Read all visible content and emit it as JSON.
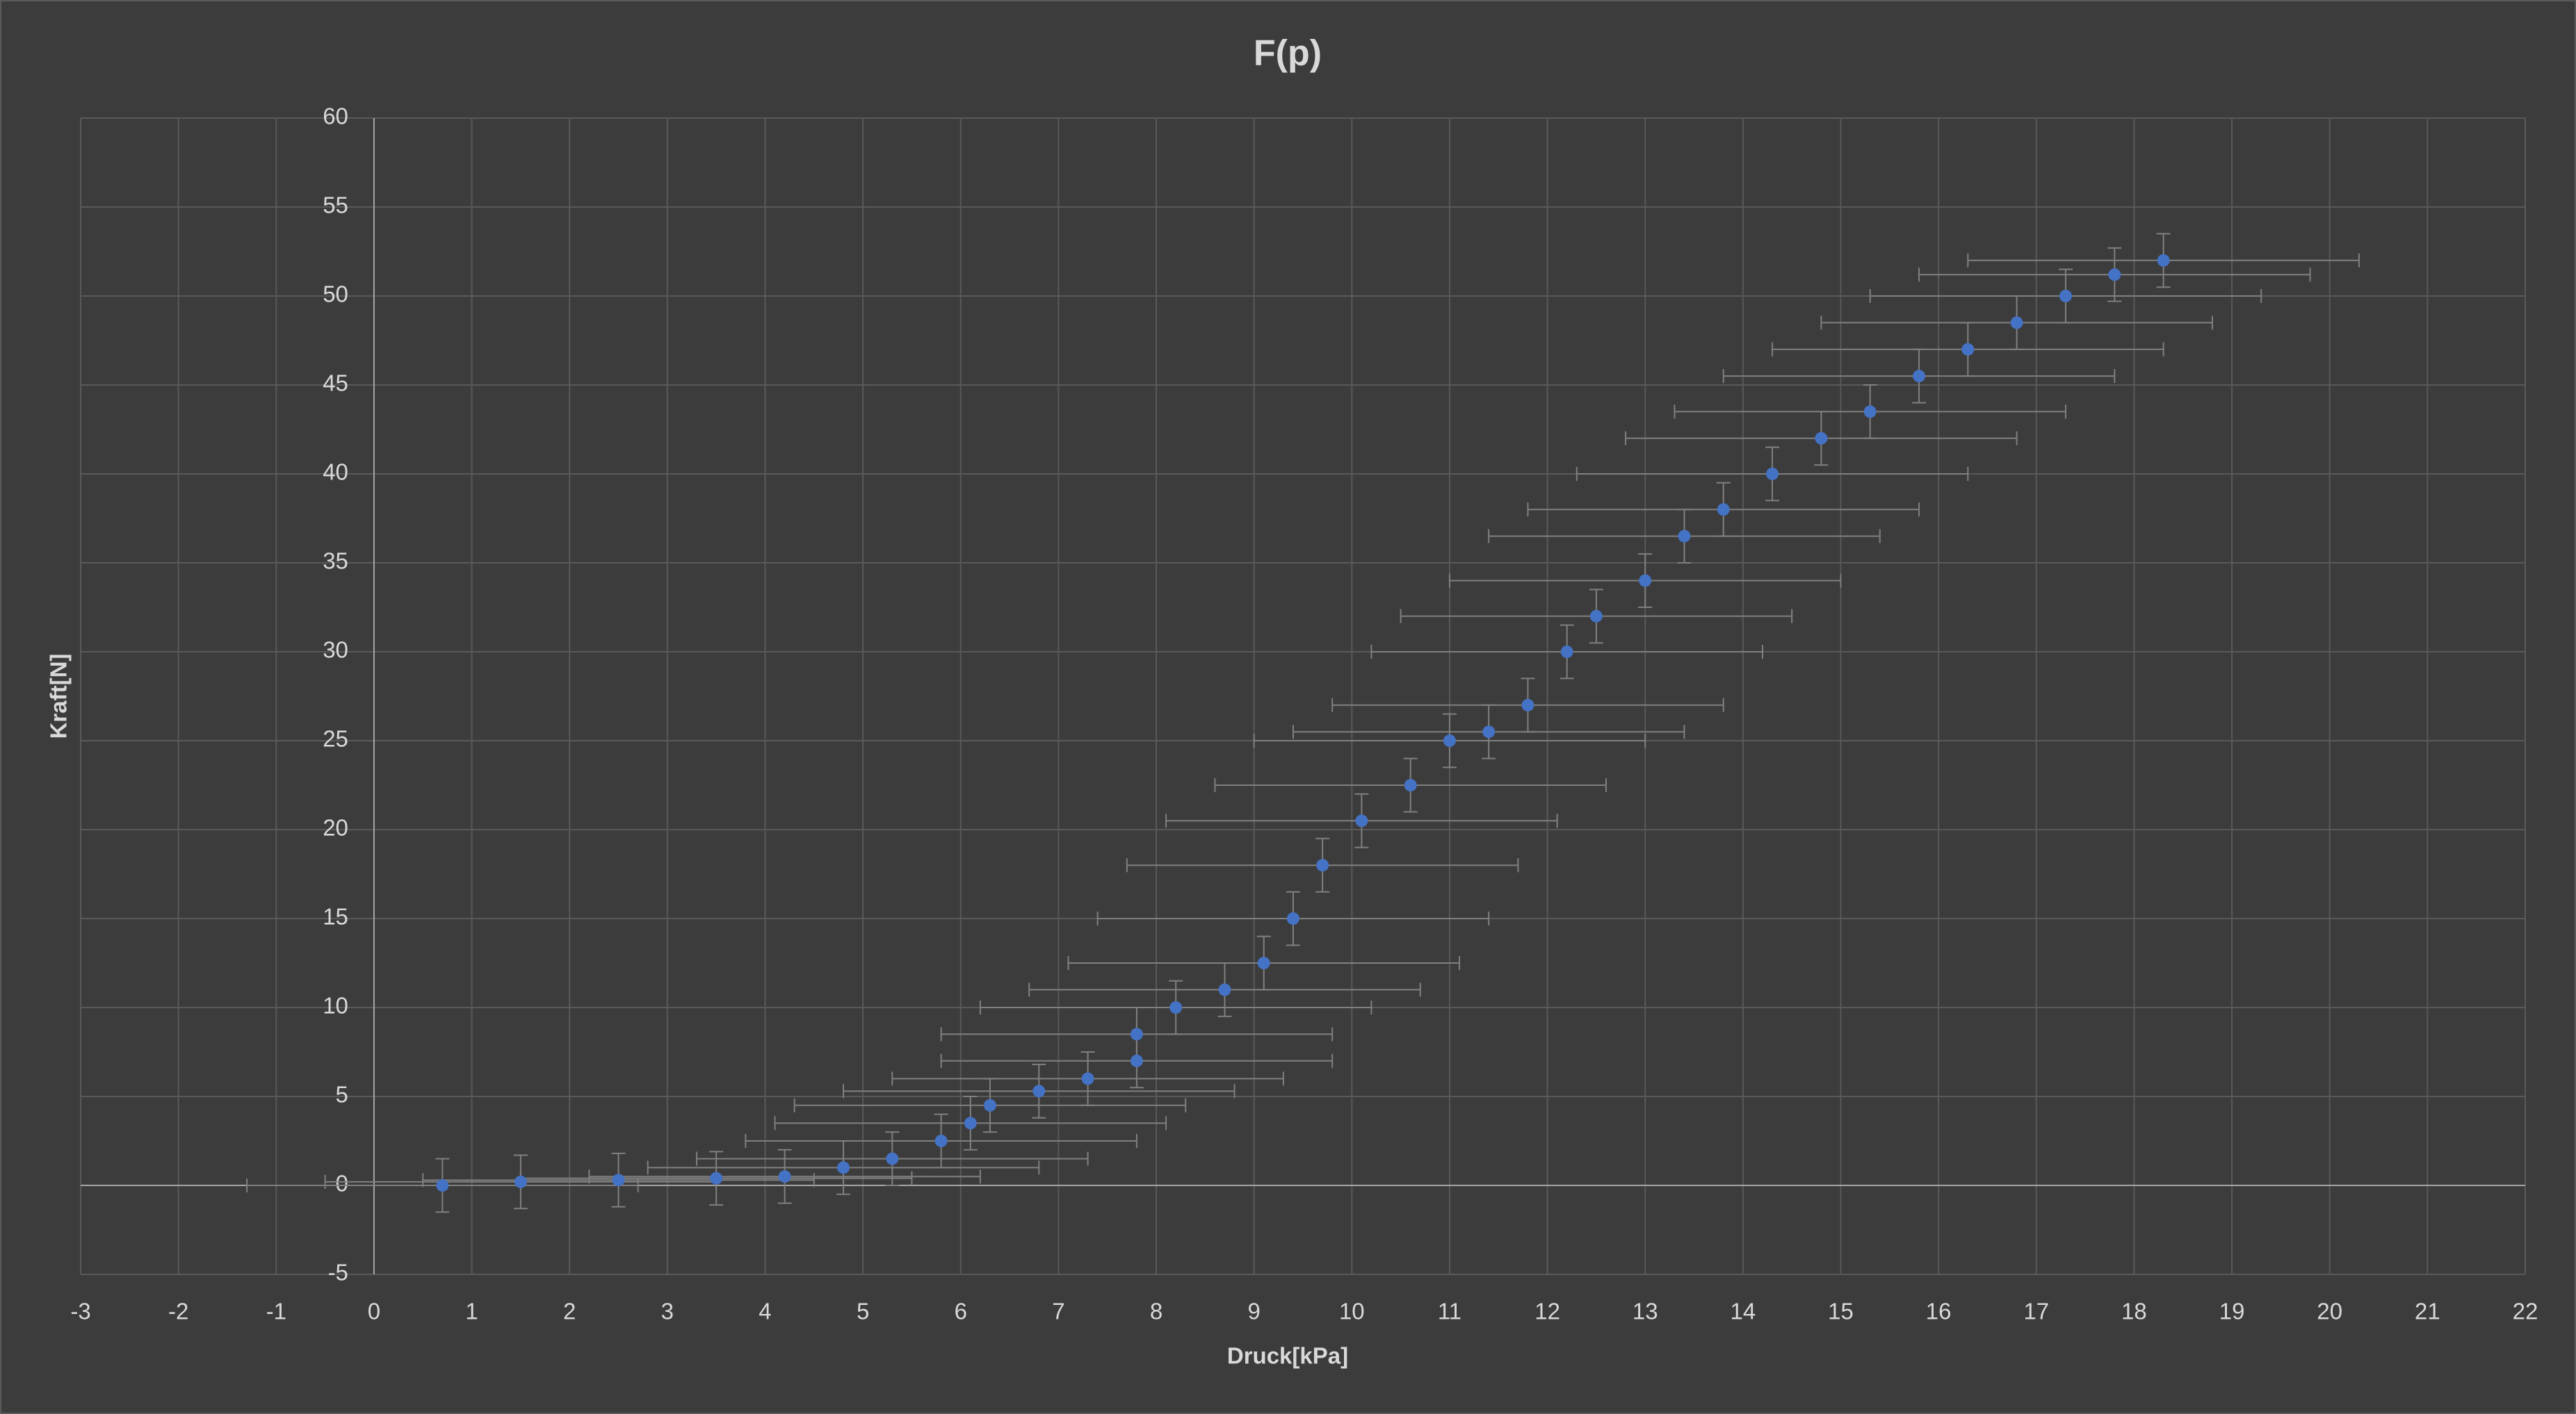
{
  "chart_data": {
    "type": "scatter",
    "title": "F(p)",
    "x_label": "Druck[kPa]",
    "y_label": "Kraft[N]",
    "xlim": [
      -3,
      22
    ],
    "xticks": [
      -3,
      -2,
      -1,
      0,
      1,
      2,
      3,
      4,
      5,
      6,
      7,
      8,
      9,
      10,
      11,
      12,
      13,
      14,
      15,
      16,
      17,
      18,
      19,
      20,
      21,
      22
    ],
    "ylim": [
      -5,
      60
    ],
    "yticks": [
      -5,
      0,
      5,
      10,
      15,
      20,
      25,
      30,
      35,
      40,
      45,
      50,
      55,
      60
    ],
    "grid": true,
    "series": [
      {
        "color": "#4472c4",
        "error_color": "#808080",
        "x_error": 2,
        "y_error": 1.5,
        "x": [
          0.7,
          1.5,
          2.5,
          3.5,
          4.2,
          4.8,
          5.3,
          5.8,
          6.1,
          6.3,
          6.8,
          7.3,
          7.8,
          7.8,
          8.2,
          8.7,
          9.1,
          9.4,
          9.7,
          10.1,
          10.6,
          11.0,
          11.4,
          11.8,
          12.2,
          12.5,
          13.0,
          13.4,
          13.8,
          14.3,
          14.8,
          15.3,
          15.8,
          16.3,
          16.8,
          17.3,
          17.8,
          18.3
        ],
        "values": [
          0,
          0.2,
          0.3,
          0.4,
          0.5,
          1.0,
          1.5,
          2.5,
          3.5,
          4.5,
          5.3,
          6.0,
          7.0,
          8.5,
          10,
          11,
          12.5,
          15,
          18,
          20.5,
          22.5,
          25,
          25.5,
          27,
          30,
          32,
          34,
          36.5,
          38,
          40,
          42,
          43.5,
          45.5,
          47,
          48.5,
          50,
          51.2,
          52
        ]
      }
    ]
  }
}
